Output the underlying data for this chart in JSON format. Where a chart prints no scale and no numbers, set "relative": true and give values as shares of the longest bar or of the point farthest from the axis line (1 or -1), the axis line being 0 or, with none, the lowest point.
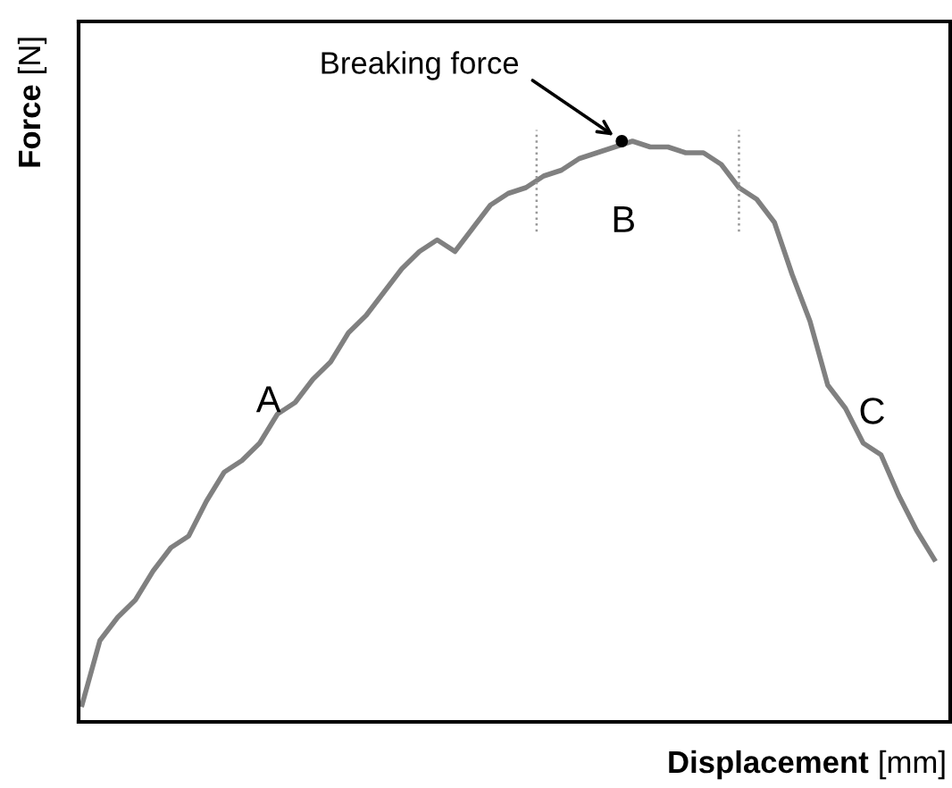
{
  "chart_data": {
    "type": "line",
    "relative": true,
    "xlabel": "Displacement [mm]",
    "ylabel": "Force [N]",
    "categories": [
      null,
      null,
      null,
      null,
      null,
      null,
      null,
      null,
      null,
      null,
      null,
      null,
      null,
      null,
      null,
      null,
      null,
      null,
      null,
      null,
      null,
      null,
      null,
      null,
      null,
      null,
      null,
      null,
      null,
      null,
      null,
      null,
      null,
      null,
      null,
      null,
      null,
      null,
      null,
      null,
      null,
      null,
      null,
      null,
      null,
      null,
      null,
      null,
      null
    ],
    "series": [
      {
        "color": "#808080",
        "values": [
          0.03,
          0.14,
          0.18,
          0.21,
          0.26,
          0.3,
          0.32,
          0.38,
          0.43,
          0.45,
          0.48,
          0.53,
          0.55,
          0.59,
          0.62,
          0.67,
          0.7,
          0.74,
          0.78,
          0.81,
          0.83,
          0.81,
          0.85,
          0.89,
          0.91,
          0.92,
          0.94,
          0.95,
          0.97,
          0.98,
          0.99,
          1.0,
          0.99,
          0.99,
          0.98,
          0.98,
          0.96,
          0.92,
          0.9,
          0.86,
          0.77,
          0.69,
          0.58,
          0.54,
          0.48,
          0.46,
          0.39,
          0.33,
          0.28
        ]
      }
    ],
    "annotations": [
      "Breaking force",
      "A",
      "B",
      "C"
    ]
  }
}
